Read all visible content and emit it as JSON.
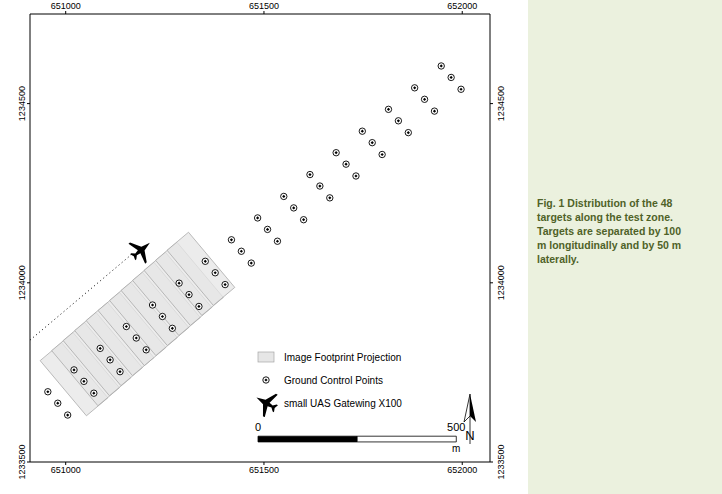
{
  "chart_data": {
    "type": "scatter",
    "xlim": [
      650910,
      652070
    ],
    "ylim": [
      1233500,
      1234750
    ],
    "xticks": [
      651000,
      651500,
      652000
    ],
    "yticks": [
      1233500,
      1234000,
      1234500
    ],
    "grid": false,
    "legend": "lower right",
    "series": [
      {
        "name": "Image Footprint Projection",
        "color": "#e6e6e6",
        "marker": "rectangle",
        "x": [
          651021,
          651050,
          651079,
          651108,
          651137,
          651167,
          651196,
          651225,
          651254,
          651283,
          651312,
          651341
        ],
        "y": [
          1233731,
          1233759,
          1233787,
          1233815,
          1233843,
          1233871,
          1233899,
          1233927,
          1233955,
          1233983,
          1234011,
          1234039
        ]
      },
      {
        "name": "Ground Control Points",
        "color": "#000000",
        "marker": "target",
        "x": [
          650955,
          650980,
          651005,
          651021,
          651046,
          651071,
          651087,
          651112,
          651137,
          651153,
          651178,
          651203,
          651219,
          651244,
          651269,
          651286,
          651311,
          651336,
          651352,
          651377,
          651402,
          651418,
          651443,
          651468,
          651484,
          651509,
          651534,
          651550,
          651575,
          651600,
          651616,
          651641,
          651666,
          651682,
          651707,
          651732,
          651748,
          651773,
          651798,
          651814,
          651839,
          651864,
          651880,
          651905,
          651930,
          651947,
          651972,
          651997
        ],
        "y": [
          1233696,
          1233664,
          1233631,
          1233757,
          1233725,
          1233692,
          1233817,
          1233785,
          1233752,
          1233878,
          1233846,
          1233813,
          1233938,
          1233906,
          1233873,
          1233999,
          1233967,
          1233934,
          1234060,
          1234028,
          1233995,
          1234120,
          1234088,
          1234055,
          1234181,
          1234149,
          1234116,
          1234241,
          1234209,
          1234176,
          1234302,
          1234270,
          1234237,
          1234363,
          1234331,
          1234298,
          1234423,
          1234391,
          1234358,
          1234484,
          1234452,
          1234419,
          1234544,
          1234512,
          1234479,
          1234605,
          1234573,
          1234540
        ]
      },
      {
        "color": "#000000",
        "marker": "none",
        "line_style": "dotted",
        "x": [
          650910,
          651166
        ],
        "y": [
          1233840,
          1234079
        ]
      },
      {
        "name": "small UAS Gatewing X100",
        "color": "#000000",
        "marker": "plane",
        "x": [
          651191
        ],
        "y": [
          1234092
        ]
      }
    ],
    "scale_bar": {
      "ticks": [
        0,
        500
      ],
      "unit": "m"
    },
    "north_label": "N",
    "caption": [
      "Fig. 1 Distribution of the 48",
      "targets along the test zone.",
      "Targets are separated by 100",
      "m longitudinally and by 50 m",
      "laterally."
    ]
  }
}
